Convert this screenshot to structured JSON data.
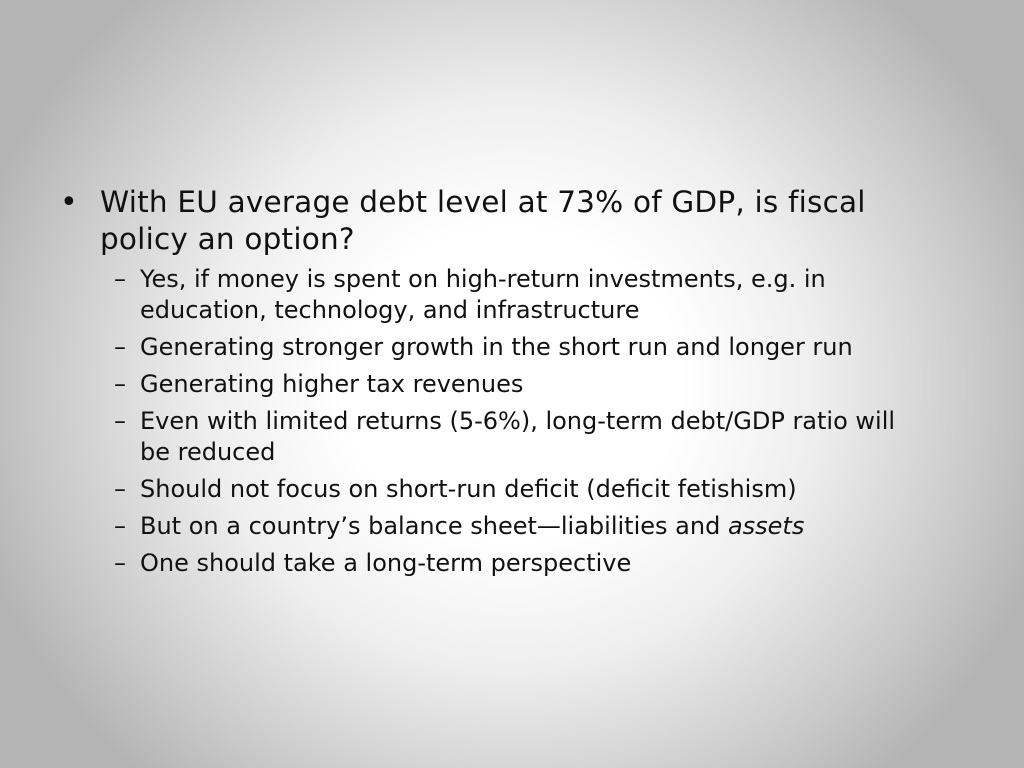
{
  "slide": {
    "bullet": {
      "marker": "•",
      "text": "With EU average debt level at 73% of GDP, is fiscal policy an option?"
    },
    "sub_marker": "–",
    "sub_items": [
      {
        "text": "Yes, if money is spent on high-return investments, e.g. in education, technology, and infrastructure"
      },
      {
        "text": "Generating stronger growth in the short run and longer run"
      },
      {
        "text": "Generating higher tax revenues"
      },
      {
        "text": "Even with limited returns (5-6%), long-term debt/GDP ratio will be reduced"
      },
      {
        "text": "Should not focus on short-run deficit (deficit fetishism)"
      },
      {
        "text_before": "But on a country’s balance sheet—liabilities and ",
        "text_italic": "assets"
      },
      {
        "text": "One should take a long-term perspective"
      }
    ]
  }
}
